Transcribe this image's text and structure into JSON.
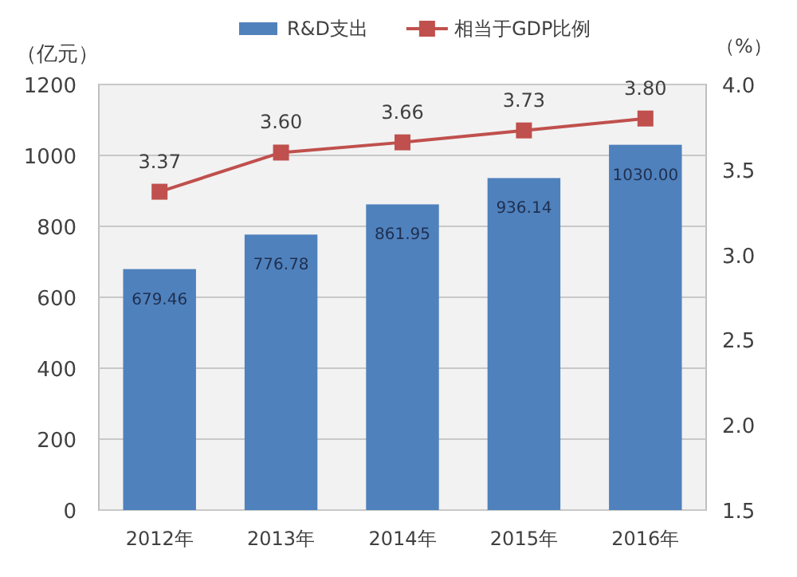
{
  "chart_data": {
    "type": "bar",
    "categories": [
      "2012年",
      "2013年",
      "2014年",
      "2015年",
      "2016年"
    ],
    "ylabel": "（亿元）",
    "y2label": "（%）",
    "series": [
      {
        "name": "R&D支出",
        "color": "#4f81bd",
        "values": [
          679.46,
          776.78,
          861.95,
          936.14,
          1030.0
        ],
        "value_labels": [
          "679.46",
          "776.78",
          "861.95",
          "936.14",
          "1030.00"
        ]
      },
      {
        "name": "相当于GDP比例",
        "type": "line",
        "axis": "y2",
        "color": "#c0504d",
        "values": [
          3.37,
          3.6,
          3.66,
          3.73,
          3.8
        ],
        "value_labels": [
          "3.37",
          "3.60",
          "3.66",
          "3.73",
          "3.80"
        ]
      }
    ],
    "ylim": [
      0,
      1200
    ],
    "yticks": [
      0,
      200,
      400,
      600,
      800,
      1000,
      1200
    ],
    "y2lim": [
      1.5,
      4.0
    ],
    "y2ticks": [
      {
        "value": 1.5,
        "label": "1.5"
      },
      {
        "value": 2.0,
        "label": "2.0"
      },
      {
        "value": 2.5,
        "label": "2.5"
      },
      {
        "value": 3.0,
        "label": "3.0"
      },
      {
        "value": 3.5,
        "label": "3.5"
      },
      {
        "value": 4.0,
        "label": "4.0"
      }
    ],
    "grid": "y",
    "legend": "top",
    "marker": "square"
  }
}
